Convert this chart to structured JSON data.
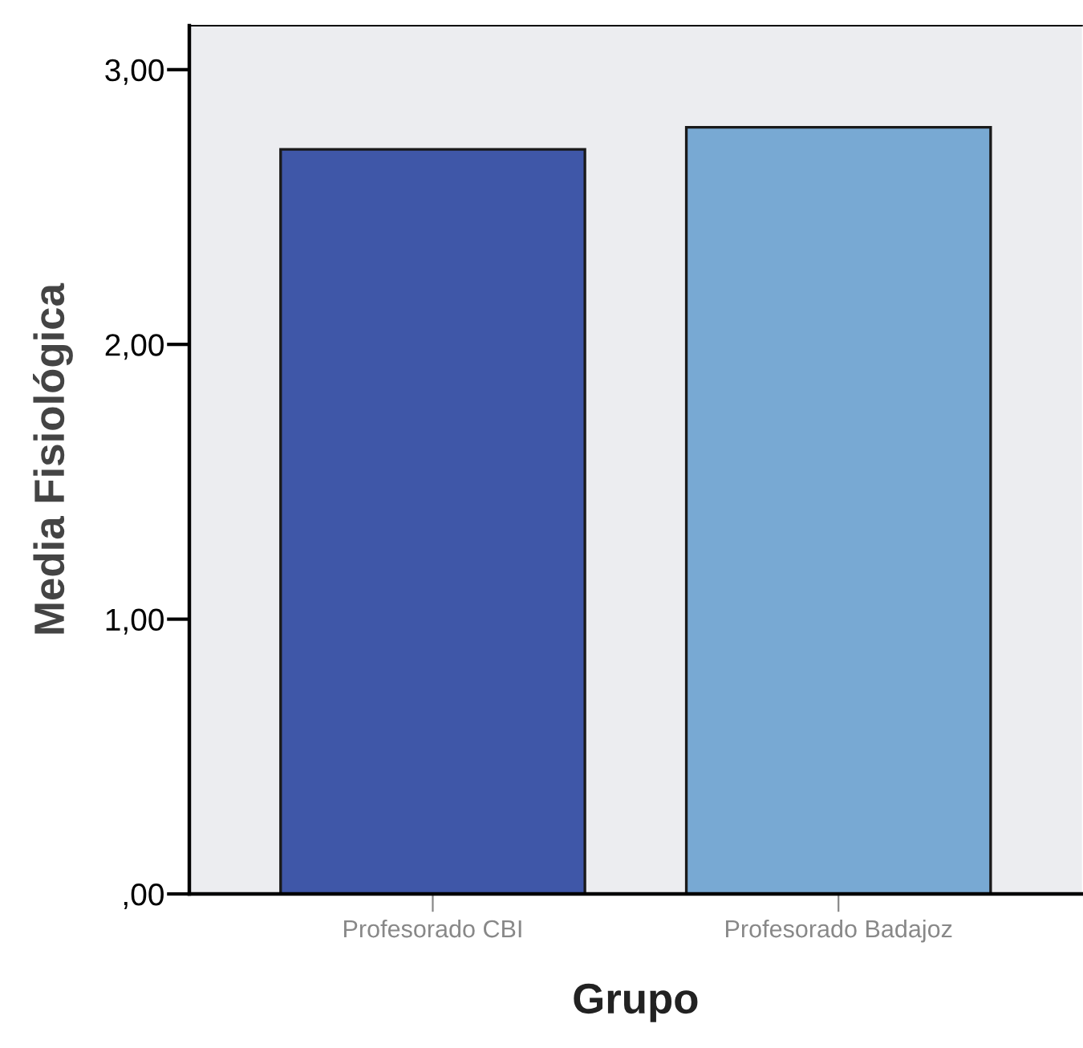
{
  "chart_data": {
    "type": "bar",
    "xlabel": "Grupo",
    "ylabel": "Media Fisiológica",
    "categories": [
      "Profesorado CBI",
      "Profesorado Badajoz"
    ],
    "colors": [
      "#3f57a8",
      "#78a9d3"
    ],
    "values": [
      2.71,
      2.79
    ],
    "ylim": [
      0,
      3.16
    ],
    "yticks": [
      {
        "value": 0,
        "label": ",00"
      },
      {
        "value": 1,
        "label": "1,00"
      },
      {
        "value": 2,
        "label": "2,00"
      },
      {
        "value": 3,
        "label": "3,00"
      }
    ],
    "grid": false,
    "legend": false
  }
}
